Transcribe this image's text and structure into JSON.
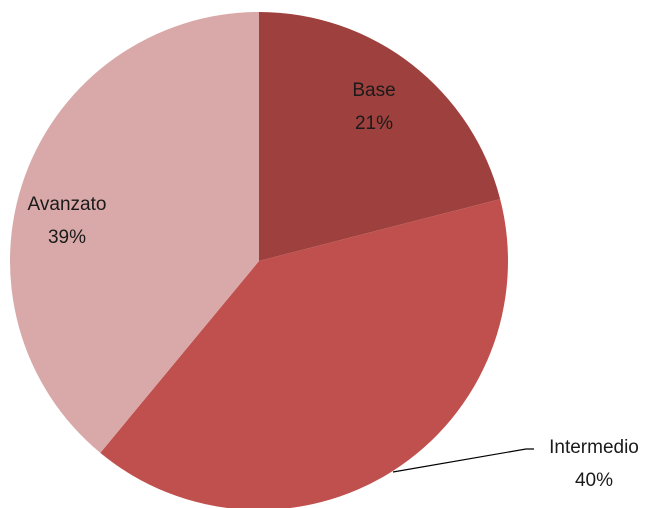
{
  "chart_data": {
    "type": "pie",
    "title": "",
    "slices": [
      {
        "label": "Base",
        "value": 21,
        "value_label": "21%",
        "color": "#9e403d"
      },
      {
        "label": "Intermedio",
        "value": 40,
        "value_label": "40%",
        "color": "#c0504d"
      },
      {
        "label": "Avanzato",
        "value": 39,
        "value_label": "39%",
        "color": "#d8a9a8"
      }
    ],
    "start": "12 o'clock",
    "direction": "clockwise",
    "legend": "none",
    "data_labels": "category and percentage"
  }
}
